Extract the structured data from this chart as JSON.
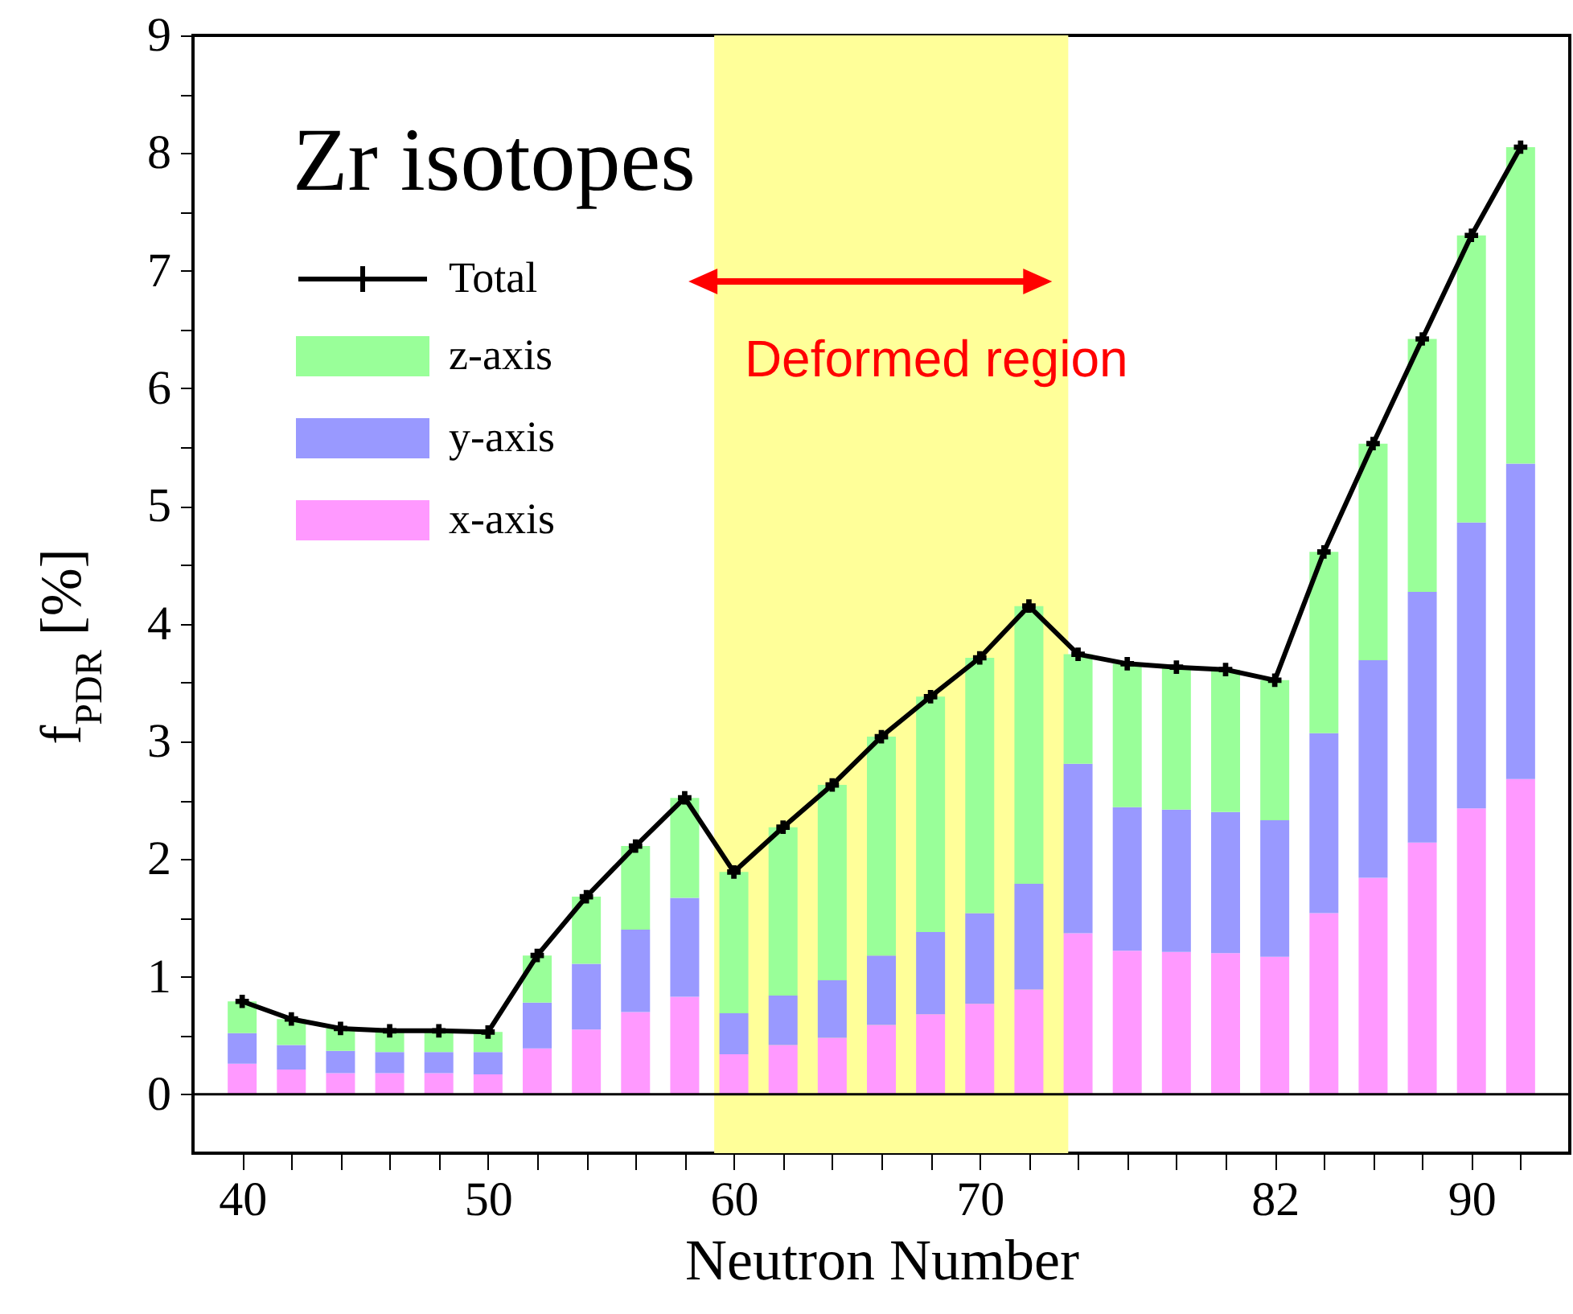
{
  "chart_data": {
    "type": "bar",
    "stacked": true,
    "title": "Zr isotopes",
    "xlabel": "Neutron Number",
    "ylabel": "f$_{PDR}$ [%]",
    "x": [
      40,
      42,
      44,
      46,
      48,
      50,
      52,
      54,
      56,
      58,
      60,
      62,
      64,
      66,
      68,
      70,
      72,
      74,
      76,
      78,
      80,
      82,
      84,
      86,
      88,
      90,
      92
    ],
    "series": [
      {
        "name": "x-axis",
        "color": "#ff99ff",
        "values": [
          0.26,
          0.21,
          0.18,
          0.18,
          0.18,
          0.17,
          0.39,
          0.55,
          0.7,
          0.83,
          0.34,
          0.42,
          0.48,
          0.59,
          0.68,
          0.77,
          0.89,
          1.37,
          1.22,
          1.21,
          1.2,
          1.17,
          1.54,
          1.84,
          2.14,
          2.43,
          2.68
        ]
      },
      {
        "name": "y-axis",
        "color": "#9999ff",
        "values": [
          0.26,
          0.21,
          0.19,
          0.18,
          0.18,
          0.19,
          0.39,
          0.56,
          0.7,
          0.84,
          0.35,
          0.42,
          0.49,
          0.59,
          0.7,
          0.77,
          0.9,
          1.44,
          1.22,
          1.21,
          1.2,
          1.16,
          1.53,
          1.85,
          2.13,
          2.43,
          2.68
        ]
      },
      {
        "name": "z-axis",
        "color": "#99ff99",
        "values": [
          0.27,
          0.22,
          0.19,
          0.18,
          0.18,
          0.17,
          0.4,
          0.57,
          0.71,
          0.85,
          1.2,
          1.43,
          1.66,
          1.86,
          2.0,
          2.17,
          2.36,
          0.93,
          1.22,
          1.21,
          1.21,
          1.19,
          1.54,
          1.84,
          2.15,
          2.44,
          2.69
        ]
      },
      {
        "name": "Total",
        "type": "line",
        "color": "#000000",
        "values": [
          0.79,
          0.64,
          0.56,
          0.54,
          0.54,
          0.53,
          1.18,
          1.68,
          2.11,
          2.52,
          1.89,
          2.27,
          2.63,
          3.04,
          3.38,
          3.71,
          4.15,
          3.74,
          3.66,
          3.63,
          3.61,
          3.52,
          4.61,
          5.53,
          6.42,
          7.3,
          8.05
        ]
      }
    ],
    "xlim": [
      38,
      94
    ],
    "xticks": [
      40,
      {
        "value": 42,
        "label": null
      },
      {
        "value": 44,
        "label": null
      },
      {
        "value": 46,
        "label": null
      },
      {
        "value": 48,
        "label": null
      },
      50,
      {
        "value": 52,
        "label": null
      },
      {
        "value": 54,
        "label": null
      },
      {
        "value": 56,
        "label": null
      },
      {
        "value": 58,
        "label": null
      },
      60,
      {
        "value": 62,
        "label": null
      },
      {
        "value": 64,
        "label": null
      },
      {
        "value": 66,
        "label": null
      },
      {
        "value": 68,
        "label": null
      },
      70,
      {
        "value": 72,
        "label": null
      },
      {
        "value": 74,
        "label": null
      },
      {
        "value": 76,
        "label": null
      },
      {
        "value": 78,
        "label": null
      },
      {
        "value": 80,
        "label": null
      },
      82,
      {
        "value": 84,
        "label": null
      },
      {
        "value": 86,
        "label": null
      },
      {
        "value": 88,
        "label": null
      },
      90,
      {
        "value": 92,
        "label": null
      }
    ],
    "ylim": [
      -0.5,
      9
    ],
    "yticks": [
      0,
      {
        "value": 0.5,
        "label": null
      },
      1,
      {
        "value": 1.5,
        "label": null
      },
      2,
      {
        "value": 2.5,
        "label": null
      },
      3,
      {
        "value": 3.5,
        "label": null
      },
      4,
      {
        "value": 4.5,
        "label": null
      },
      5,
      {
        "value": 5.5,
        "label": null
      },
      6,
      {
        "value": 6.5,
        "label": null
      },
      7,
      {
        "value": 7.5,
        "label": null
      },
      8,
      {
        "value": 8.5,
        "label": null
      },
      9
    ],
    "bands": [
      {
        "axis": "x",
        "from": 59.2,
        "to": 73.6,
        "label": "Deformed region",
        "color": "#ffff99"
      }
    ],
    "ref_lines": [
      {
        "axis": "y",
        "value": 0
      }
    ],
    "marker": "cross",
    "legend": "top left",
    "grid": false
  }
}
